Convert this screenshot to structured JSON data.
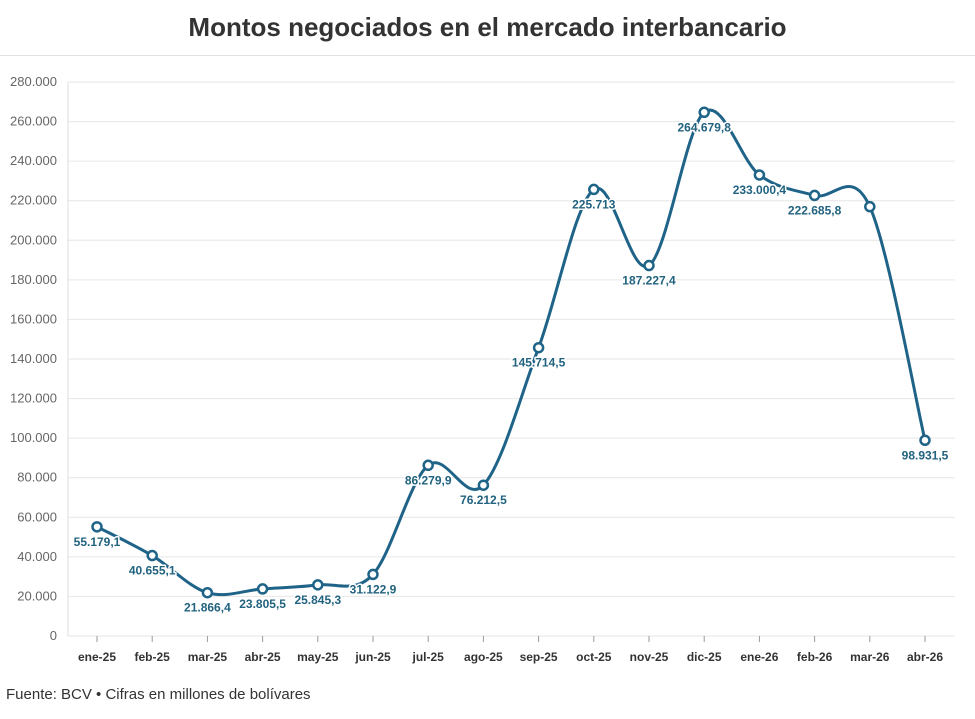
{
  "header": {
    "title": "Montos negociados en el mercado interbancario"
  },
  "footer": {
    "source": "Fuente: BCV • Cifras en millones de bolívares"
  },
  "colors": {
    "line": "#1f6488",
    "label": "#21627f",
    "grid": "#e6e6e6"
  },
  "chart_data": {
    "type": "line",
    "title": "Montos negociados en el mercado interbancario",
    "xlabel": "",
    "ylabel": "",
    "ylim": [
      0,
      280000
    ],
    "grid": true,
    "y_ticks": [
      0,
      20000,
      40000,
      60000,
      80000,
      100000,
      120000,
      140000,
      160000,
      180000,
      200000,
      220000,
      240000,
      260000,
      280000
    ],
    "y_tick_labels": [
      "0",
      "20.000",
      "40.000",
      "60.000",
      "80.000",
      "100.000",
      "120.000",
      "140.000",
      "160.000",
      "180.000",
      "200.000",
      "220.000",
      "240.000",
      "260.000",
      "280.000"
    ],
    "categories": [
      "ene-25",
      "feb-25",
      "mar-25",
      "abr-25",
      "may-25",
      "jun-25",
      "jul-25",
      "ago-25",
      "sep-25",
      "oct-25",
      "nov-25",
      "dic-25",
      "ene-26",
      "feb-26",
      "mar-26",
      "abr-26"
    ],
    "values": [
      55179.1,
      40655.1,
      21866.4,
      23805.5,
      25845.3,
      31122.9,
      86279.9,
      76212.5,
      145714.5,
      225713,
      187227.4,
      264679.8,
      233000.4,
      222685.8,
      217000,
      98931.5
    ],
    "labels": [
      "55.179,1",
      "40.655,1",
      "21.866,4",
      "23.805,5",
      "25.845,3",
      "31.122,9",
      "86.279,9",
      "76.212,5",
      "145.714,5",
      "225.713",
      "187.227,4",
      "264.679,8",
      "233.000,4",
      "222.685,8",
      "",
      "98.931,5"
    ]
  }
}
